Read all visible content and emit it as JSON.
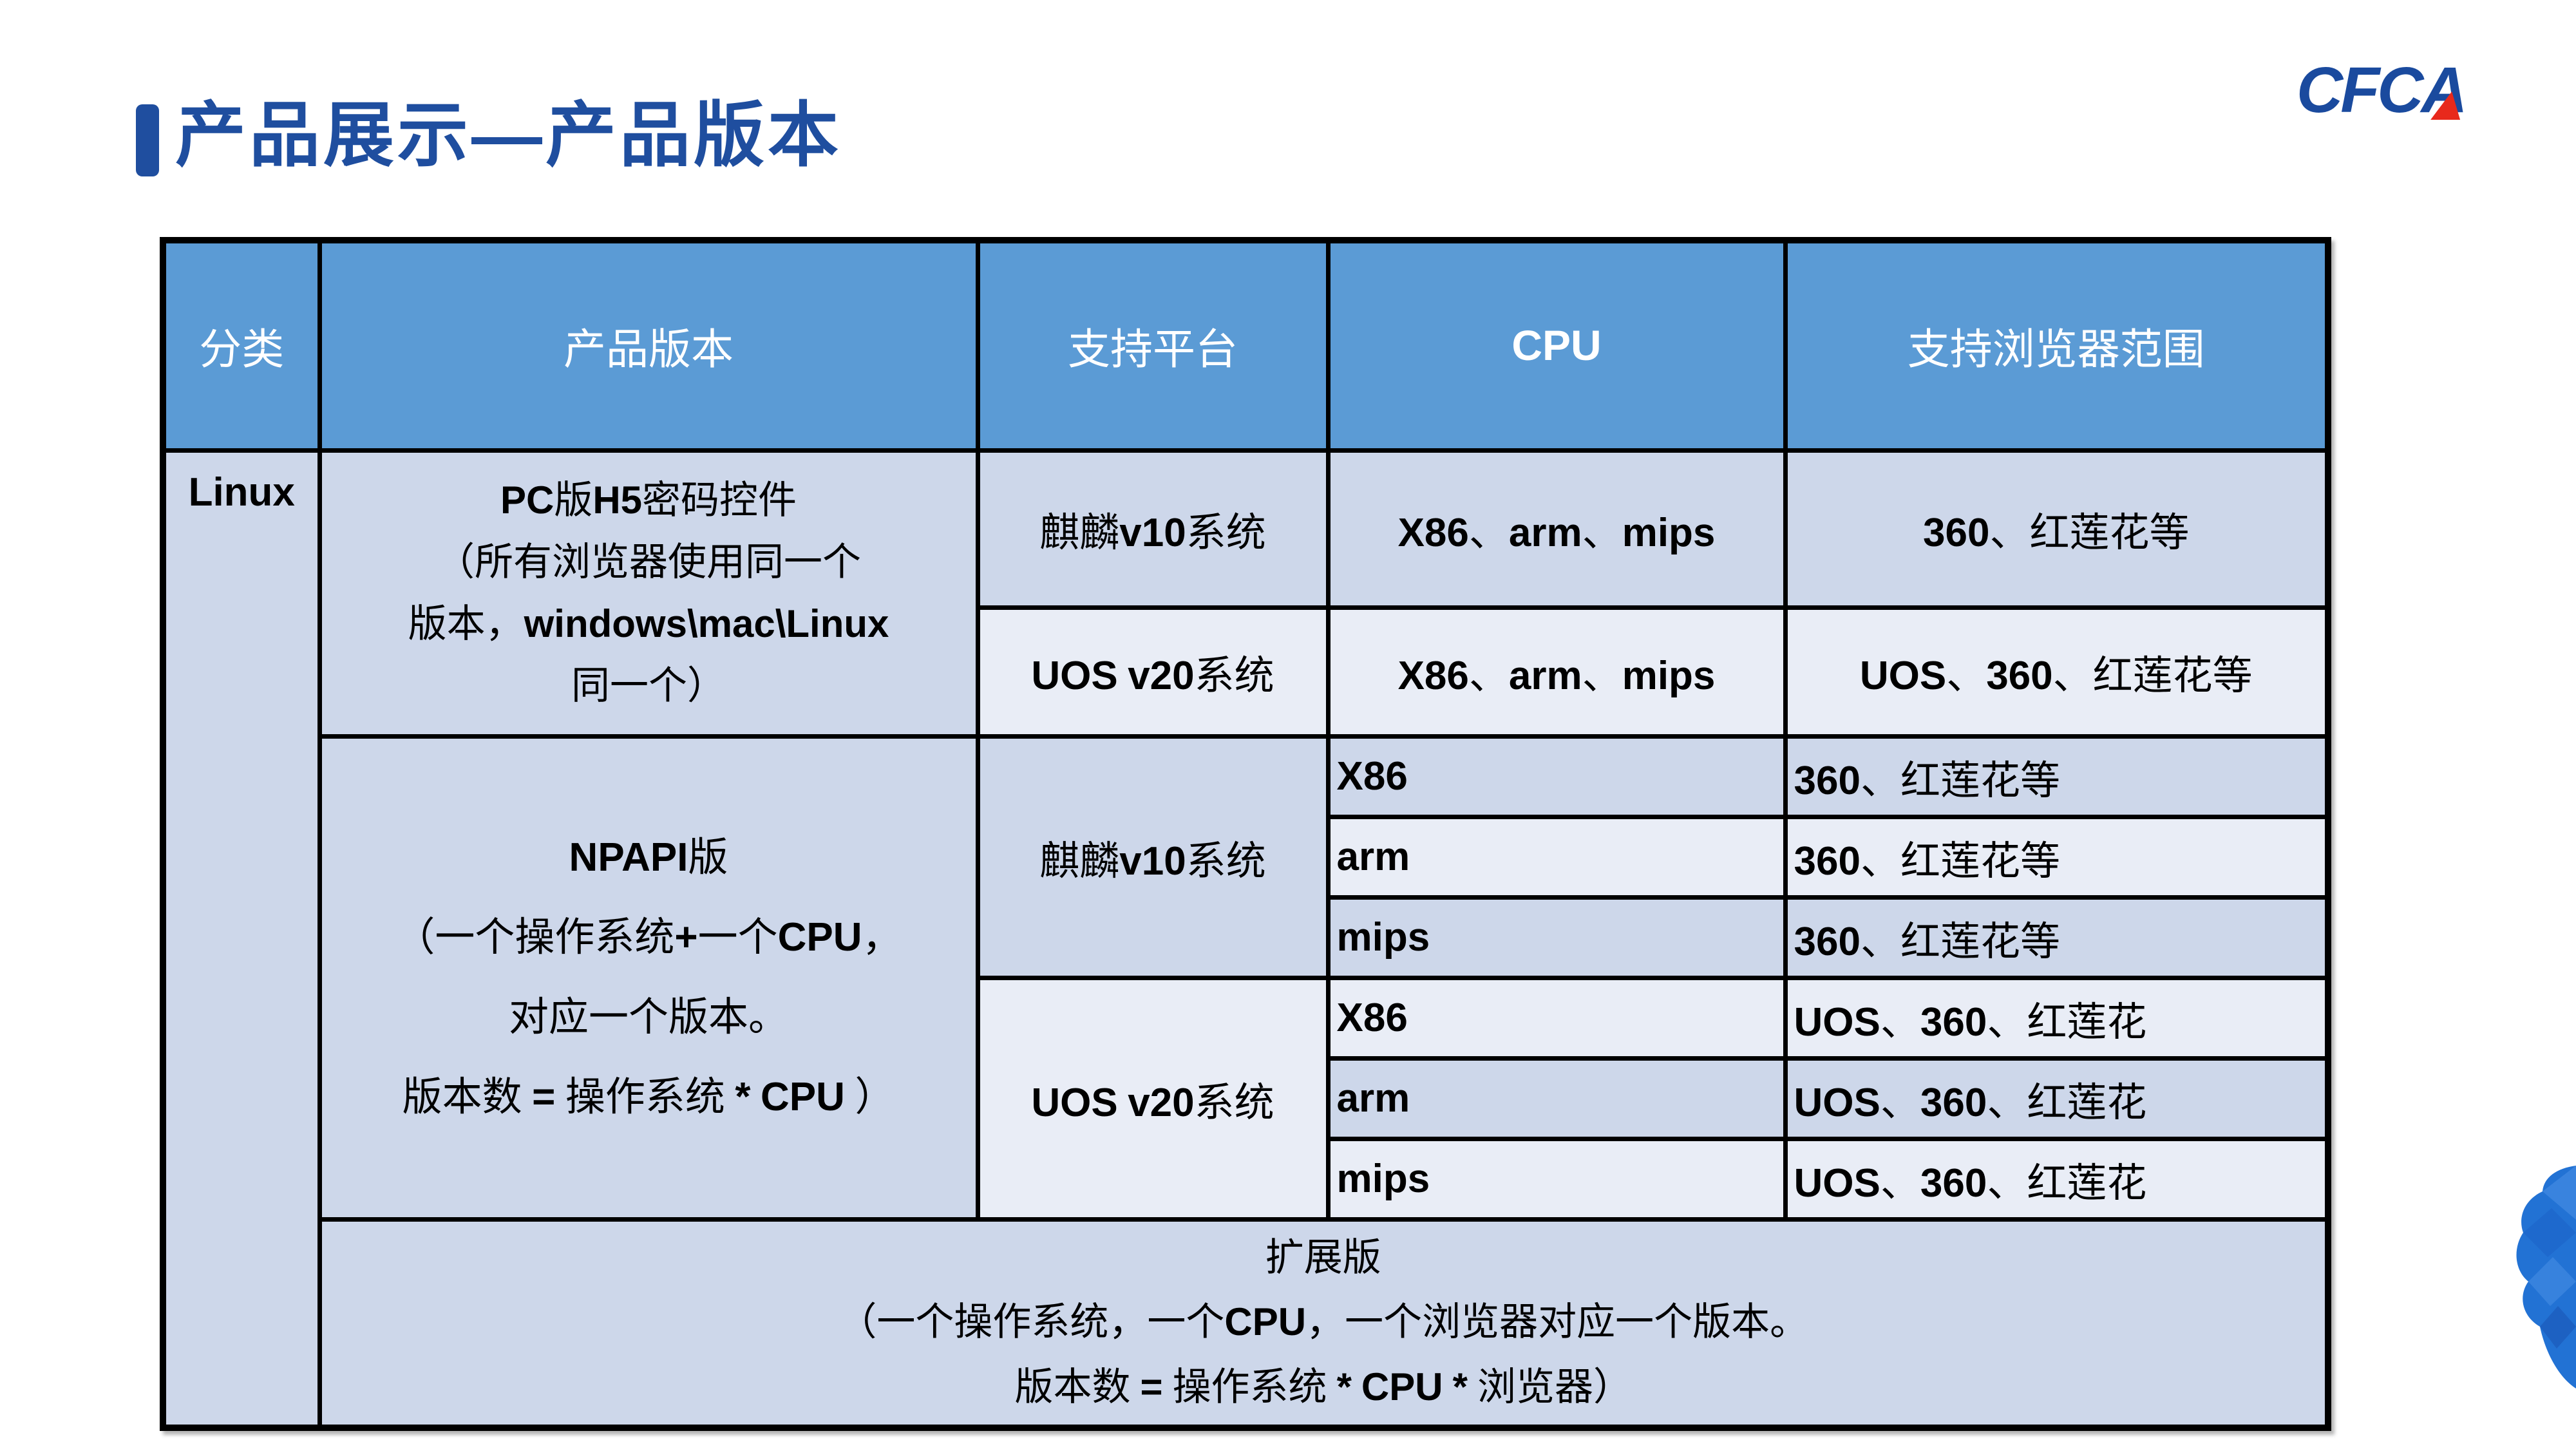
{
  "slide": {
    "title": "产品展示—产品版本",
    "logo_text": "CFCA",
    "colors": {
      "title_blue": "#1F4E9F",
      "logo_blue": "#1A4A9E",
      "logo_red": "#E8291C",
      "header_bg": "#5B9BD5",
      "row_dark": "#CDD7EA",
      "row_light": "#E9EDF6",
      "border": "#000000"
    }
  },
  "table": {
    "headers": {
      "category": "分类",
      "product_version": "产品版本",
      "platform": "支持平台",
      "cpu": "CPU",
      "browsers": "支持浏览器范围"
    },
    "category": "Linux",
    "h5": {
      "product": "PC版H5密码控件\n（所有浏览器使用同一个\n版本，windows\\mac\\Linux\n同一个）",
      "rows": [
        {
          "platform": "麒麟v10系统",
          "cpu": "X86、arm、mips",
          "browsers": "360、红莲花等"
        },
        {
          "platform": "UOS v20系统",
          "cpu": "X86、arm、mips",
          "browsers": "UOS、360、红莲花等"
        }
      ]
    },
    "npapi": {
      "product": "NPAPI版\n（一个操作系统+一个CPU，\n对应一个版本。\n版本数 = 操作系统 * CPU ）",
      "groups": [
        {
          "platform": "麒麟v10系统",
          "rows": [
            {
              "cpu": "X86",
              "browsers": "360、红莲花等"
            },
            {
              "cpu": "arm",
              "browsers": "360、红莲花等"
            },
            {
              "cpu": "mips",
              "browsers": "360、红莲花等"
            }
          ]
        },
        {
          "platform": "UOS v20系统",
          "rows": [
            {
              "cpu": "X86",
              "browsers": "UOS、360、红莲花"
            },
            {
              "cpu": "arm",
              "browsers": "UOS、360、红莲花"
            },
            {
              "cpu": "mips",
              "browsers": "UOS、360、红莲花"
            }
          ]
        }
      ]
    },
    "extended": {
      "product": "扩展版\n（一个操作系统，一个CPU，一个浏览器对应一个版本。\n版本数 = 操作系统 * CPU * 浏览器）"
    }
  }
}
